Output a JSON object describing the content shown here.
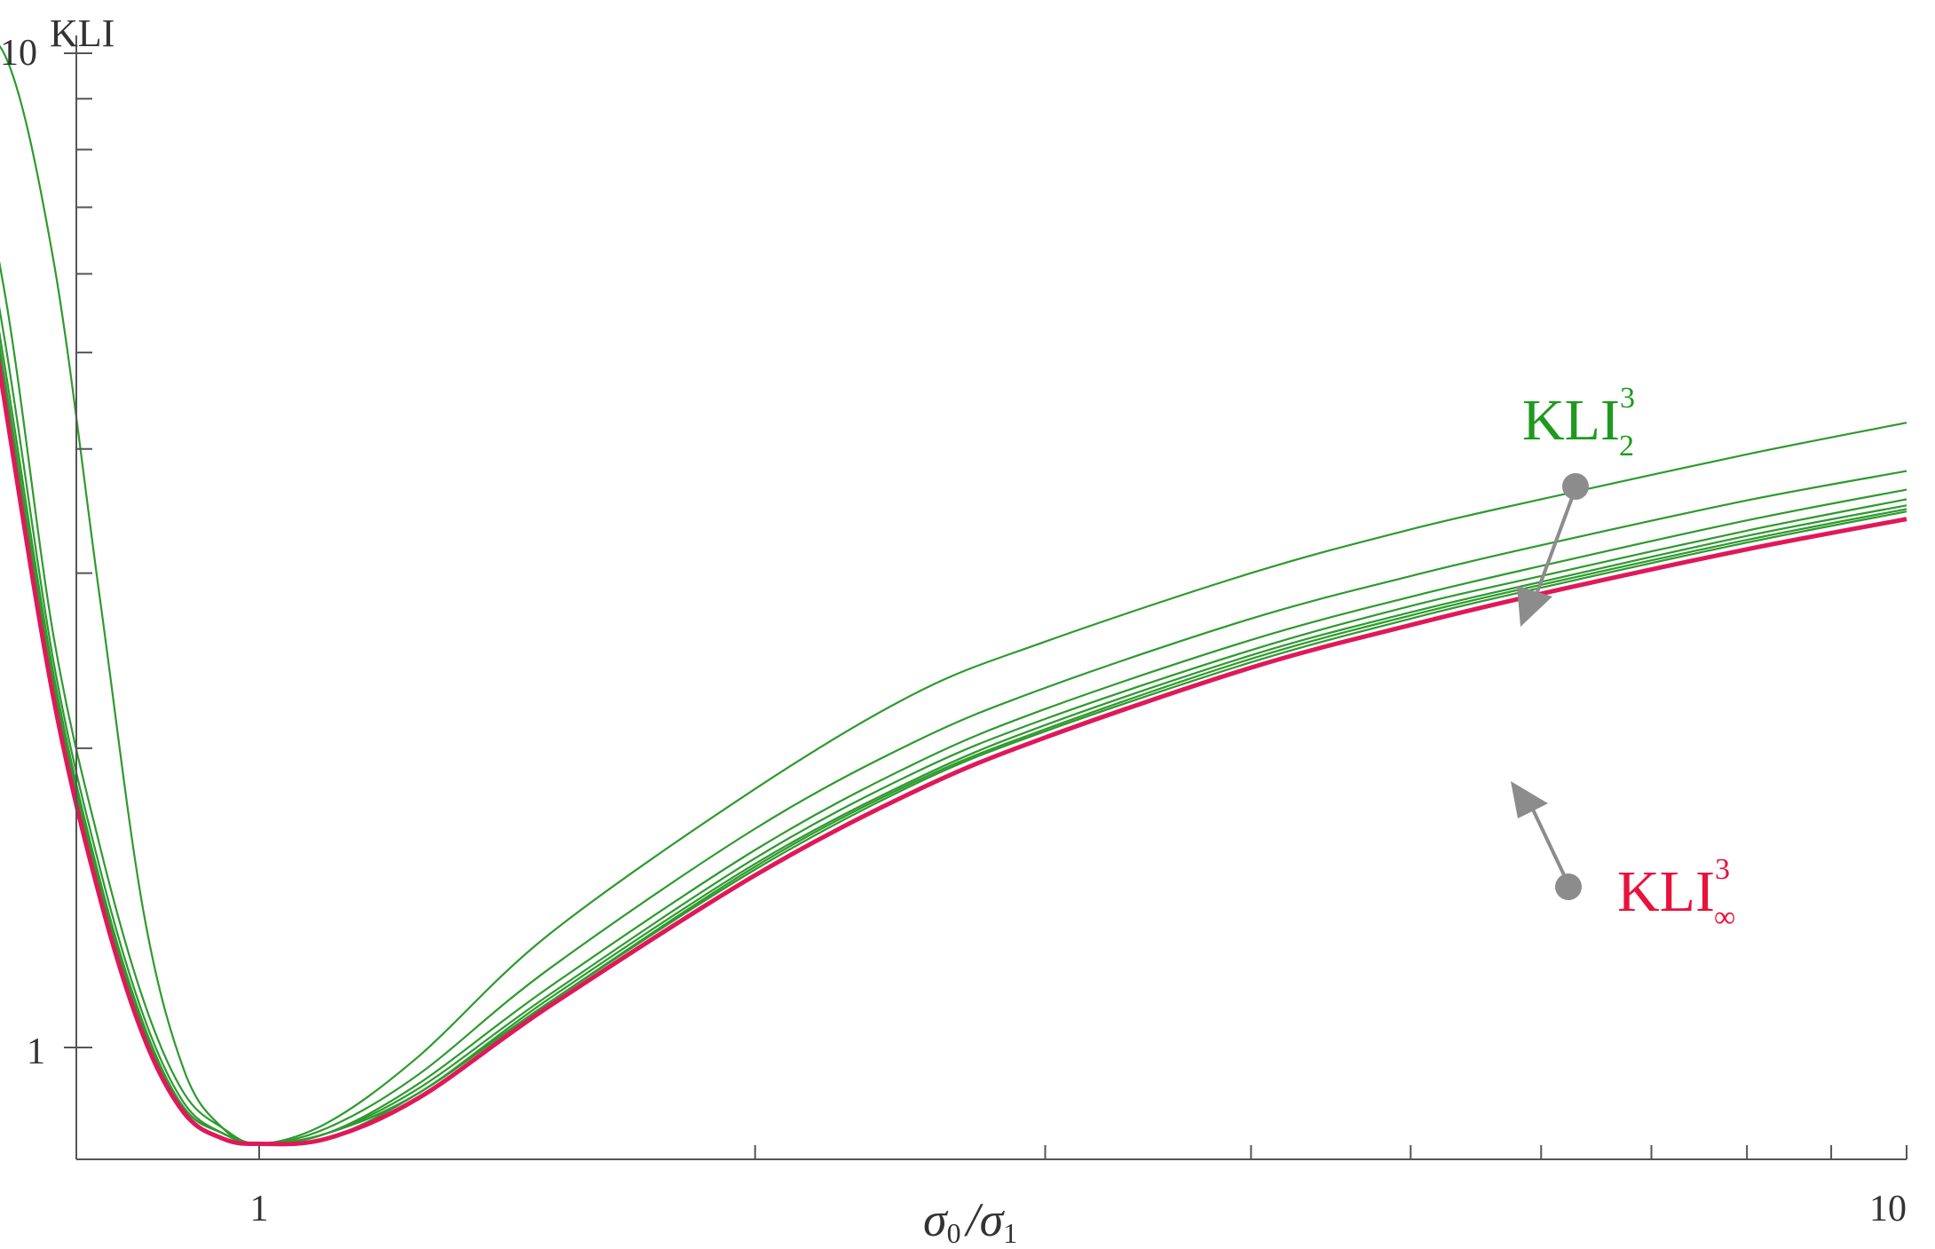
{
  "chart_data": {
    "type": "line",
    "x_scale": "log",
    "y_scale": "log",
    "xlim": [
      0.6,
      10
    ],
    "ylim": [
      0.8,
      10
    ],
    "xticks": [
      1,
      10
    ],
    "x_tick_labels": [
      "1",
      "10"
    ],
    "yticks": [
      1,
      10
    ],
    "y_tick_labels": [
      "1",
      "10"
    ],
    "ylabel": "KLI",
    "xlabel": {
      "sigma": "σ",
      "sub0": "0",
      "slash": "/",
      "sub1": "1"
    },
    "x": [
      0.6,
      0.62,
      0.65,
      0.7,
      0.75,
      0.8,
      0.85,
      0.9,
      0.95,
      1.0,
      1.1,
      1.25,
      1.5,
      2.0,
      2.5,
      3.0,
      4.0,
      5.0,
      6.0,
      8.0,
      10.0
    ],
    "series": [
      {
        "color": "#2e9a2e",
        "values": [
          10,
          10,
          10,
          10,
          6.2,
          2.85,
          1.38,
          0.95,
          0.83,
          0.8,
          0.84,
          0.98,
          1.3,
          1.82,
          2.27,
          2.56,
          3.0,
          3.32,
          3.56,
          3.95,
          4.25
        ]
      },
      {
        "color": "#2e9a2e",
        "values": [
          10,
          10,
          10,
          5.8,
          2.6,
          1.6,
          1.12,
          0.9,
          0.83,
          0.8,
          0.83,
          0.94,
          1.2,
          1.66,
          2.03,
          2.3,
          2.7,
          2.98,
          3.2,
          3.55,
          3.8
        ]
      },
      {
        "color": "#2e9a2e",
        "values": [
          10,
          10,
          10,
          5.2,
          2.45,
          1.52,
          1.08,
          0.88,
          0.82,
          0.8,
          0.82,
          0.92,
          1.15,
          1.58,
          1.93,
          2.19,
          2.57,
          2.84,
          3.05,
          3.39,
          3.64
        ]
      },
      {
        "color": "#2e9a2e",
        "values": [
          10,
          10,
          10,
          4.9,
          2.38,
          1.48,
          1.06,
          0.87,
          0.82,
          0.8,
          0.82,
          0.91,
          1.13,
          1.55,
          1.89,
          2.14,
          2.51,
          2.78,
          2.98,
          3.31,
          3.56
        ]
      },
      {
        "color": "#2e9a2e",
        "values": [
          10,
          10,
          10,
          4.75,
          2.33,
          1.46,
          1.05,
          0.87,
          0.82,
          0.8,
          0.82,
          0.9,
          1.12,
          1.53,
          1.86,
          2.11,
          2.48,
          2.74,
          2.94,
          3.27,
          3.51
        ]
      },
      {
        "color": "#2e9a2e",
        "values": [
          10,
          10,
          10,
          4.65,
          2.3,
          1.45,
          1.05,
          0.87,
          0.82,
          0.8,
          0.82,
          0.9,
          1.11,
          1.52,
          1.85,
          2.09,
          2.46,
          2.72,
          2.92,
          3.24,
          3.48
        ]
      },
      {
        "color": "#2e9a2e",
        "values": [
          10,
          10,
          10,
          4.58,
          2.28,
          1.44,
          1.04,
          0.86,
          0.81,
          0.8,
          0.81,
          0.9,
          1.11,
          1.51,
          1.84,
          2.08,
          2.44,
          2.7,
          2.9,
          3.22,
          3.46
        ]
      },
      {
        "color": "#e0185a",
        "values": [
          10,
          10,
          10,
          4.5,
          2.25,
          1.42,
          1.03,
          0.86,
          0.81,
          0.8,
          0.81,
          0.89,
          1.1,
          1.49,
          1.81,
          2.05,
          2.41,
          2.66,
          2.86,
          3.17,
          3.4
        ]
      }
    ],
    "annotations": [
      {
        "base": "KLI",
        "sup": "3",
        "sub": "2",
        "color": "#1f9a1f"
      },
      {
        "base": "KLI",
        "sup": "3",
        "sub": "∞",
        "color": "#e8123c"
      }
    ]
  }
}
